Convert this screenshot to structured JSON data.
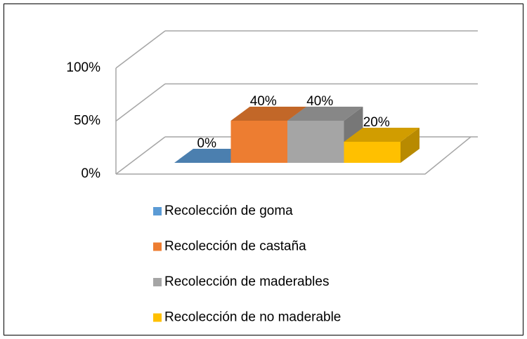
{
  "chart_data": {
    "type": "bar3d",
    "series": [
      {
        "name": "Recolección de goma",
        "color": "#5b9bd5",
        "values": [
          0
        ],
        "value_labels": [
          "0%"
        ]
      },
      {
        "name": "Recolección de castaña",
        "color": "#ed7d31",
        "values": [
          40
        ],
        "value_labels": [
          "40%"
        ]
      },
      {
        "name": "Recolección de maderables",
        "color": "#a5a5a5",
        "values": [
          40
        ],
        "value_labels": [
          "40%"
        ]
      },
      {
        "name": "Recolección de no maderable",
        "color": "#ffc000",
        "values": [
          20
        ],
        "value_labels": [
          "20%"
        ]
      }
    ],
    "ylim": [
      0,
      100
    ],
    "yticks": [
      {
        "value": 0,
        "label": "0%"
      },
      {
        "value": 50,
        "label": "50%"
      },
      {
        "value": 100,
        "label": "100%"
      }
    ],
    "grid": true,
    "legend": "bottom"
  }
}
